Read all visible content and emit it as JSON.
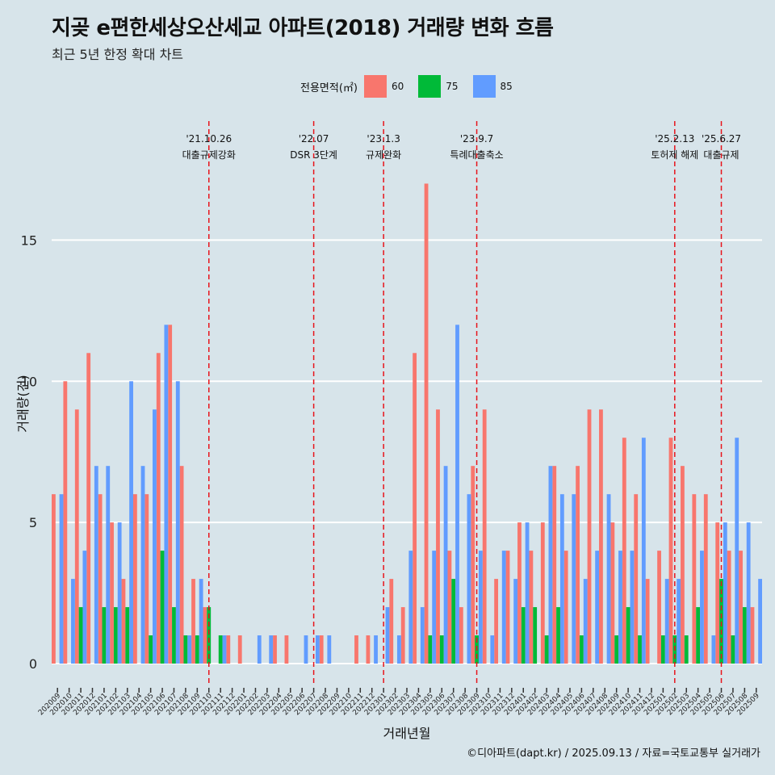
{
  "title": "지곶 e편한세상오산세교 아파트(2018) 거래량 변화 흐름",
  "subtitle": "최근 5년 한정 확대 차트",
  "caption": "©디아파트(dapt.kr) / 2025.09.13 / 자료=국토교통부 실거래가",
  "legend": {
    "title": "전용면적(㎡)",
    "items": [
      {
        "label": "60",
        "color": "#f8766d"
      },
      {
        "label": "75",
        "color": "#00ba38"
      },
      {
        "label": "85",
        "color": "#619cff"
      }
    ]
  },
  "chart_data": {
    "type": "bar",
    "title": "지곶 e편한세상오산세교 아파트(2018) 거래량 변화 흐름",
    "subtitle": "최근 5년 한정 확대 차트",
    "xlabel": "거래년월",
    "ylabel": "거래량(건)",
    "ylim": [
      -0.8,
      19.5
    ],
    "yticks": [
      0,
      5,
      10,
      15
    ],
    "grid": true,
    "legend_position": "top",
    "categories": [
      "202009",
      "202010",
      "202011",
      "202012",
      "202101",
      "202102",
      "202103",
      "202104",
      "202105",
      "202106",
      "202107",
      "202108",
      "202109",
      "202110",
      "202111",
      "202112",
      "202201",
      "202202",
      "202203",
      "202204",
      "202205",
      "202206",
      "202207",
      "202208",
      "202209",
      "202210",
      "202211",
      "202212",
      "202301",
      "202302",
      "202303",
      "202304",
      "202305",
      "202306",
      "202307",
      "202308",
      "202309",
      "202310",
      "202311",
      "202312",
      "202401",
      "202402",
      "202403",
      "202404",
      "202405",
      "202406",
      "202407",
      "202408",
      "202409",
      "202410",
      "202411",
      "202412",
      "202501",
      "202502",
      "202503",
      "202504",
      "202505",
      "202506",
      "202507",
      "202508",
      "202509"
    ],
    "series": [
      {
        "name": "60",
        "color": "#f8766d",
        "values": [
          6,
          10,
          9,
          11,
          6,
          5,
          3,
          6,
          6,
          11,
          12,
          7,
          3,
          2,
          0,
          1,
          1,
          0,
          0,
          1,
          1,
          0,
          0,
          1,
          0,
          0,
          1,
          1,
          0,
          3,
          2,
          11,
          17,
          9,
          4,
          2,
          7,
          9,
          3,
          4,
          5,
          4,
          5,
          7,
          4,
          7,
          9,
          9,
          5,
          8,
          6,
          3,
          4,
          8,
          7,
          6,
          6,
          5,
          4,
          4,
          2
        ]
      },
      {
        "name": "75",
        "color": "#00ba38",
        "values": [
          0,
          0,
          2,
          0,
          2,
          2,
          2,
          0,
          1,
          4,
          2,
          1,
          1,
          2,
          1,
          0,
          0,
          0,
          0,
          0,
          0,
          0,
          0,
          0,
          0,
          0,
          0,
          0,
          0,
          0,
          0,
          0,
          1,
          1,
          3,
          0,
          1,
          0,
          0,
          0,
          2,
          2,
          1,
          2,
          0,
          1,
          0,
          0,
          1,
          2,
          1,
          0,
          1,
          1,
          1,
          2,
          0,
          3,
          1,
          2,
          0
        ]
      },
      {
        "name": "85",
        "color": "#619cff",
        "values": [
          6,
          3,
          4,
          7,
          7,
          5,
          10,
          7,
          9,
          12,
          10,
          1,
          3,
          0,
          1,
          0,
          0,
          1,
          1,
          0,
          0,
          1,
          1,
          1,
          0,
          0,
          0,
          1,
          2,
          1,
          4,
          2,
          4,
          7,
          12,
          6,
          4,
          1,
          4,
          3,
          5,
          0,
          7,
          6,
          6,
          3,
          4,
          6,
          4,
          4,
          8,
          0,
          3,
          3,
          0,
          4,
          1,
          5,
          8,
          5,
          3
        ]
      }
    ],
    "events": [
      {
        "date_label": "'21.10.26",
        "text": "대출규제강화",
        "x": "202110"
      },
      {
        "date_label": "'22.07",
        "text": "DSR 3단계",
        "x": "202207"
      },
      {
        "date_label": "'23.1.3",
        "text": "규제완화",
        "x": "202301"
      },
      {
        "date_label": "'23.9.7",
        "text": "특례대출축소",
        "x": "202309"
      },
      {
        "date_label": "'25.2.13",
        "text": "토허제 해제",
        "x": "202502"
      },
      {
        "date_label": "'25.6.27",
        "text": "대출규제",
        "x": "202506"
      }
    ]
  }
}
